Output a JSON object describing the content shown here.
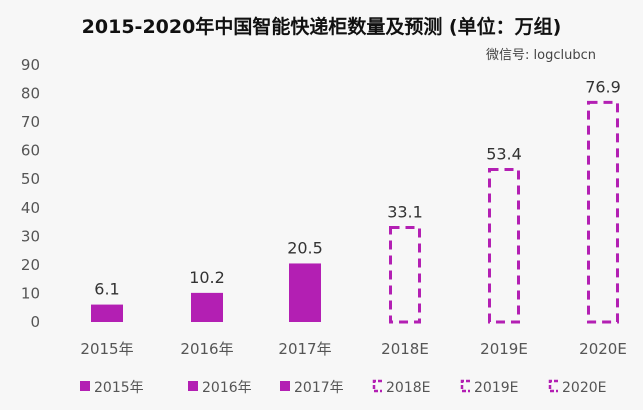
{
  "chart_data": {
    "type": "bar",
    "title": "2015-2020年中国智能快递柜数量及预测 (单位：万组)",
    "categories": [
      "2015年",
      "2016年",
      "2017年",
      "2018E",
      "2019E",
      "2020E"
    ],
    "values": [
      6.1,
      10.2,
      20.5,
      33.1,
      53.4,
      76.9
    ],
    "data_labels": [
      "6.1",
      "10.2",
      "20.5",
      "33.1",
      "53.4",
      "76.9"
    ],
    "forecast": [
      false,
      false,
      false,
      true,
      true,
      true
    ],
    "ylim": [
      0,
      90
    ],
    "yticks": [
      "0",
      "10",
      "20",
      "30",
      "40",
      "50",
      "60",
      "70",
      "80",
      "90"
    ],
    "grid": false,
    "legend": "bottom",
    "color": "#b31fb3",
    "xlabel": "",
    "ylabel": ""
  },
  "watermark": "微信号: logclubcn"
}
